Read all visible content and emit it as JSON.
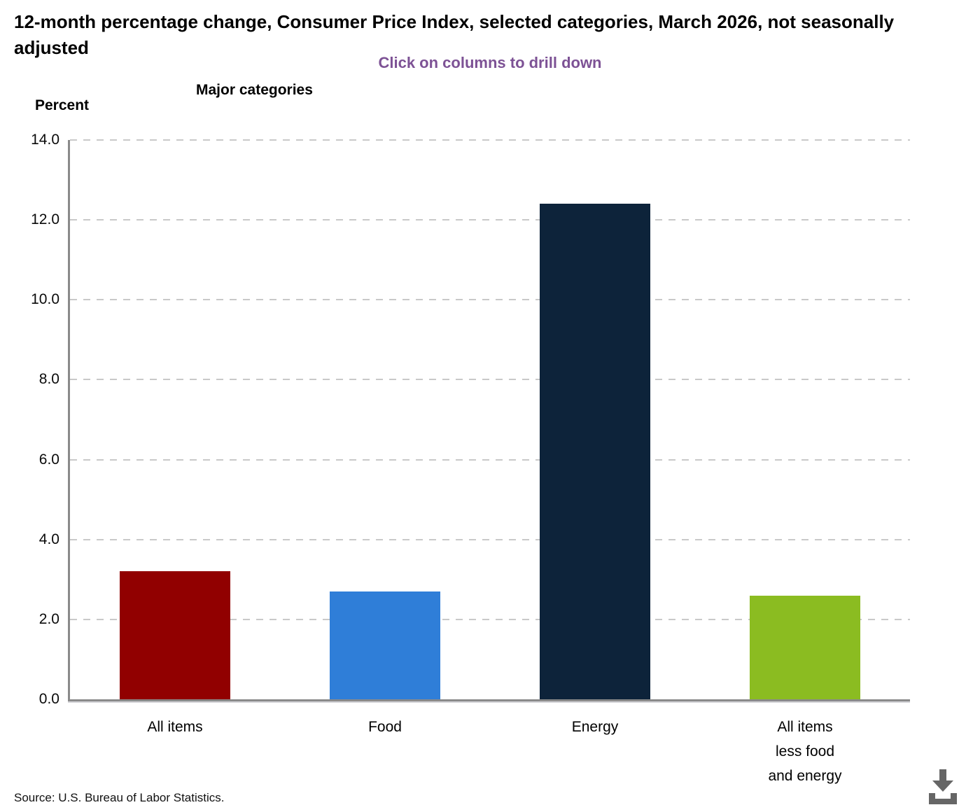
{
  "header": {
    "title": "12-month percentage change, Consumer Price Index, selected categories, March 2026, not seasonally adjusted",
    "subtitle": "Click on columns to drill down"
  },
  "chart_data": {
    "type": "bar",
    "title": "12-month percentage change, Consumer Price Index, selected categories, March 2026, not seasonally adjusted",
    "subtitle": "Click on columns to drill down",
    "axis_title_top": "Major categories",
    "ylabel": "Percent",
    "categories": [
      "All items",
      "Food",
      "Energy",
      "All items\nless food\nand energy"
    ],
    "values": [
      3.2,
      2.7,
      12.4,
      2.6
    ],
    "bar_colors": [
      "#910000",
      "#2f7ed8",
      "#0d233a",
      "#8bbc21"
    ],
    "ylim": [
      0,
      14
    ],
    "ytick_labels": [
      "14.0",
      "12.0",
      "10.0",
      "8.0",
      "6.0",
      "4.0",
      "2.0",
      "0.0"
    ],
    "gridlines": "horizontal dashed at every 2.0",
    "legend": "none"
  },
  "footer": {
    "source": "Source: U.S. Bureau of Labor Statistics."
  },
  "icons": {
    "download": "download-icon"
  },
  "colors": {
    "subtitle_text": "#7d5295",
    "axis_line": "#8a8a8a",
    "gridline": "#c9c9c9",
    "download_icon": "#666666"
  }
}
